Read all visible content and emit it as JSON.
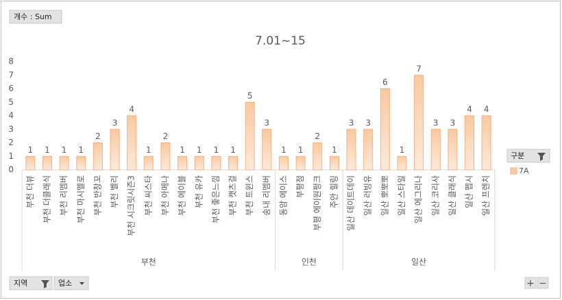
{
  "field_buttons": {
    "value_field": "개수 : Sum",
    "axis_fields": [
      "지역",
      "업소"
    ]
  },
  "chart_data": {
    "type": "bar",
    "title": "7.01~15",
    "groups": [
      {
        "name": "부천",
        "categories": [
          "부천 더뷰",
          "부천 더클래식",
          "부천 리멤버",
          "부천 마시멜로",
          "부천 반창꼬",
          "부천 벨리",
          "부천 시크릿시즌3",
          "부천 씨스타",
          "부천 아메나",
          "부천 에이블",
          "부천 유카",
          "부천 좋은느낌",
          "부천 캣츠걸",
          "부천 트윈스",
          "송내 리멤버"
        ]
      },
      {
        "name": "인천",
        "categories": [
          "동암 에이스",
          "부평점",
          "부평 에이원펑크",
          "주안 힐링"
        ]
      },
      {
        "name": "일산",
        "categories": [
          "일산 데이트데이",
          "일산 러빙유",
          "일산 뽀뽀뽀",
          "일산 스타일",
          "일산 에그리나",
          "일산 코리사",
          "일산 클래식",
          "일산 펩시",
          "일산 프렌치"
        ]
      }
    ],
    "series": [
      {
        "name": "7A",
        "color": "#f8cba0",
        "values": [
          1,
          1,
          1,
          1,
          2,
          3,
          4,
          1,
          2,
          1,
          1,
          1,
          1,
          5,
          3,
          1,
          1,
          2,
          1,
          3,
          3,
          6,
          1,
          7,
          3,
          3,
          4,
          4
        ]
      }
    ],
    "legend_title": "구분",
    "ylim": [
      0,
      8
    ],
    "yticks": [
      0,
      1,
      2,
      3,
      4,
      5,
      6,
      7,
      8
    ],
    "grid": false
  }
}
